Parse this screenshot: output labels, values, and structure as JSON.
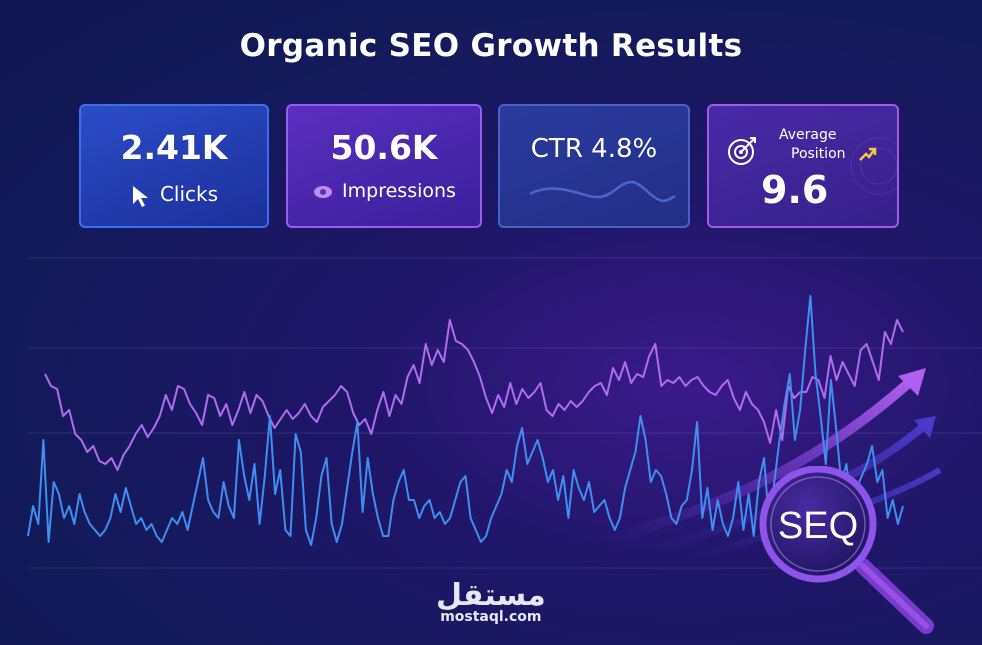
{
  "title": "Organic SEO Growth Results",
  "cards": {
    "clicks": {
      "value": "2.41K",
      "label": "Clicks",
      "icon": "cursor-icon"
    },
    "impressions": {
      "value": "50.6K",
      "label": "Impressions",
      "icon": "eye-icon"
    },
    "ctr": {
      "label": "CTR 4.8%"
    },
    "position": {
      "label_line1": "Average",
      "label_line2": "Position",
      "value": "9.6",
      "icon": "target-icon"
    }
  },
  "magnifier_label": "SEQ",
  "watermark": {
    "arabic": "مستقل",
    "url": "mostaql.com"
  },
  "colors": {
    "impressions_line": "#b06cf0",
    "clicks_line": "#3f8ef0",
    "arrow": "#a64cf0"
  },
  "chart_data": {
    "type": "line",
    "title": "",
    "xlabel": "",
    "ylabel": "",
    "grid": true,
    "ylim": [
      0,
      100
    ],
    "series": [
      {
        "values": [
          62,
          58,
          57,
          48,
          50,
          42,
          40,
          36,
          38,
          33,
          32,
          34,
          30,
          35,
          38,
          42,
          45,
          41,
          44,
          48,
          55,
          50,
          58,
          57,
          52,
          49,
          45,
          55,
          54,
          48,
          52,
          45,
          50,
          56,
          49,
          55,
          53,
          48,
          44,
          47,
          50,
          47,
          49,
          52,
          48,
          46,
          51,
          53,
          55,
          58,
          56,
          49,
          45,
          47,
          42,
          50,
          56,
          48,
          55,
          52,
          61,
          65,
          59,
          72,
          65,
          70,
          66,
          80,
          73,
          72,
          70,
          66,
          61,
          54,
          49,
          55,
          51,
          59,
          52,
          57,
          54,
          56,
          59,
          50,
          48,
          52,
          50,
          53,
          51,
          53,
          56,
          58,
          59,
          55,
          64,
          60,
          66,
          59,
          62,
          61,
          68,
          72,
          58,
          60,
          59,
          61,
          58,
          60,
          61,
          58,
          56,
          55,
          58,
          60,
          54,
          50,
          56,
          52,
          50,
          46,
          39,
          50,
          40,
          58,
          54,
          56,
          56,
          61,
          60,
          54,
          68,
          60,
          66,
          62,
          58,
          70,
          72,
          66,
          60,
          76,
          72,
          80,
          76
        ]
      },
      {
        "values": [
          8,
          18,
          12,
          40,
          6,
          26,
          22,
          14,
          18,
          12,
          22,
          16,
          12,
          10,
          8,
          10,
          14,
          22,
          16,
          24,
          18,
          12,
          14,
          10,
          12,
          8,
          6,
          10,
          14,
          12,
          16,
          10,
          18,
          26,
          34,
          20,
          16,
          14,
          26,
          18,
          14,
          40,
          28,
          20,
          32,
          12,
          28,
          48,
          22,
          30,
          10,
          8,
          42,
          36,
          10,
          5,
          14,
          28,
          34,
          12,
          6,
          12,
          24,
          36,
          46,
          16,
          34,
          22,
          14,
          8,
          8,
          20,
          26,
          30,
          20,
          20,
          14,
          18,
          20,
          14,
          16,
          12,
          14,
          20,
          26,
          28,
          14,
          10,
          6,
          8,
          14,
          18,
          22,
          30,
          26,
          38,
          44,
          32,
          36,
          40,
          34,
          26,
          30,
          20,
          28,
          14,
          30,
          24,
          20,
          26,
          16,
          18,
          20,
          14,
          10,
          14,
          24,
          30,
          36,
          48,
          40,
          26,
          30,
          28,
          22,
          14,
          12,
          18,
          20,
          30,
          46,
          14,
          24,
          10,
          20,
          12,
          8,
          14,
          26,
          10,
          22,
          8,
          26,
          34,
          12,
          26,
          40,
          52,
          62,
          40,
          50,
          70,
          88,
          62,
          48,
          32,
          60,
          44,
          26,
          32,
          18,
          24,
          28,
          32,
          38,
          26,
          30,
          14,
          20,
          12,
          18
        ]
      }
    ]
  }
}
